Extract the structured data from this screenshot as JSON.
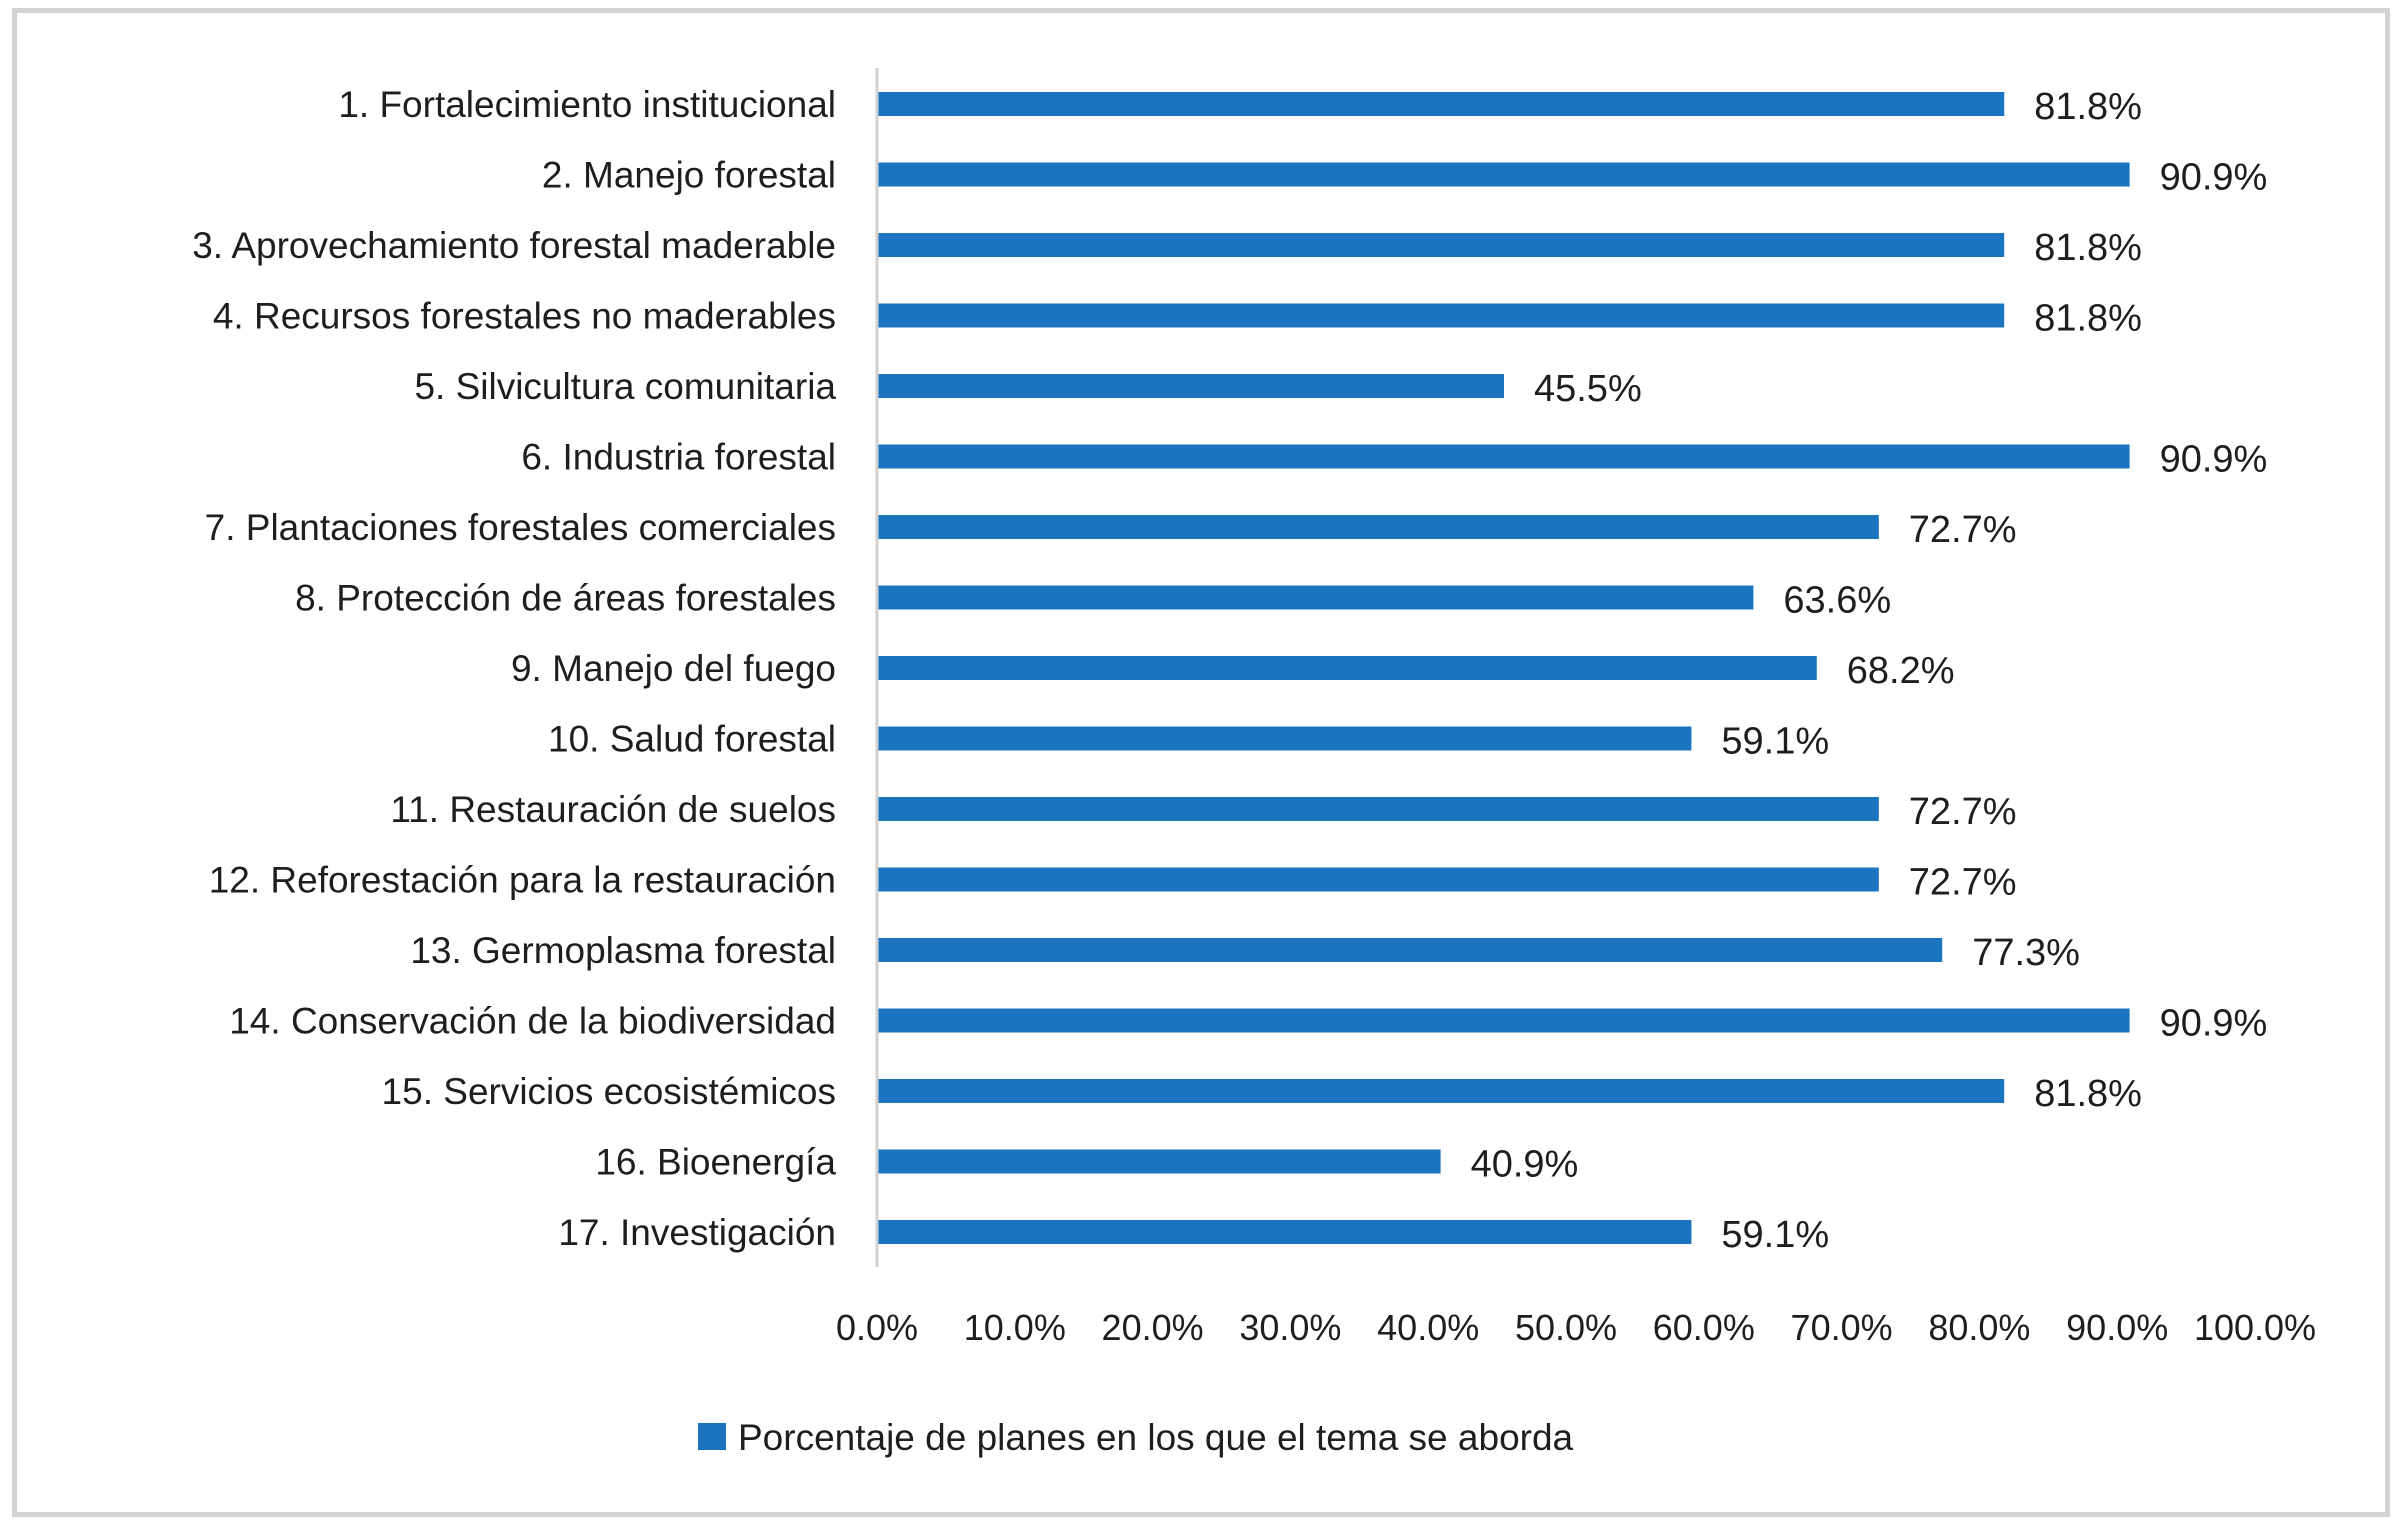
{
  "chart_data": {
    "type": "bar",
    "orientation": "horizontal",
    "title": "",
    "xlabel": "",
    "ylabel": "",
    "xlim": [
      0,
      100
    ],
    "grid": false,
    "legend_position": "bottom",
    "categories": [
      "1. Fortalecimiento institucional",
      "2. Manejo forestal",
      "3. Aprovechamiento forestal maderable",
      "4. Recursos forestales no maderables",
      "5. Silvicultura comunitaria",
      "6. Industria forestal",
      "7. Plantaciones forestales comerciales",
      "8. Protección de áreas forestales",
      "9. Manejo del fuego",
      "10. Salud forestal",
      "11. Restauración de suelos",
      "12. Reforestación para la restauración",
      "13. Germoplasma forestal",
      "14. Conservación de la biodiversidad",
      "15. Servicios ecosistémicos",
      "16. Bioenergía",
      "17. Investigación"
    ],
    "series": [
      {
        "name": "Porcentaje de planes en los que el tema se aborda",
        "color": "#1b74c0",
        "values": [
          81.8,
          90.9,
          81.8,
          81.8,
          45.5,
          90.9,
          72.7,
          63.6,
          68.2,
          59.1,
          72.7,
          72.7,
          77.3,
          90.9,
          81.8,
          40.9,
          59.1
        ],
        "data_labels": [
          "81.8%",
          "90.9%",
          "81.8%",
          "81.8%",
          "45.5%",
          "90.9%",
          "72.7%",
          "63.6%",
          "68.2%",
          "59.1%",
          "72.7%",
          "72.7%",
          "77.3%",
          "90.9%",
          "81.8%",
          "40.9%",
          "59.1%"
        ]
      }
    ],
    "x_ticks": [
      0,
      10,
      20,
      30,
      40,
      50,
      60,
      70,
      80,
      90,
      100
    ],
    "x_tick_labels": [
      "0.0%",
      "10.0%",
      "20.0%",
      "30.0%",
      "40.0%",
      "50.0%",
      "60.0%",
      "70.0%",
      "80.0%",
      "90.0%",
      "100.0%"
    ],
    "legend": [
      "Porcentaje de planes en los que el tema se aborda"
    ]
  }
}
